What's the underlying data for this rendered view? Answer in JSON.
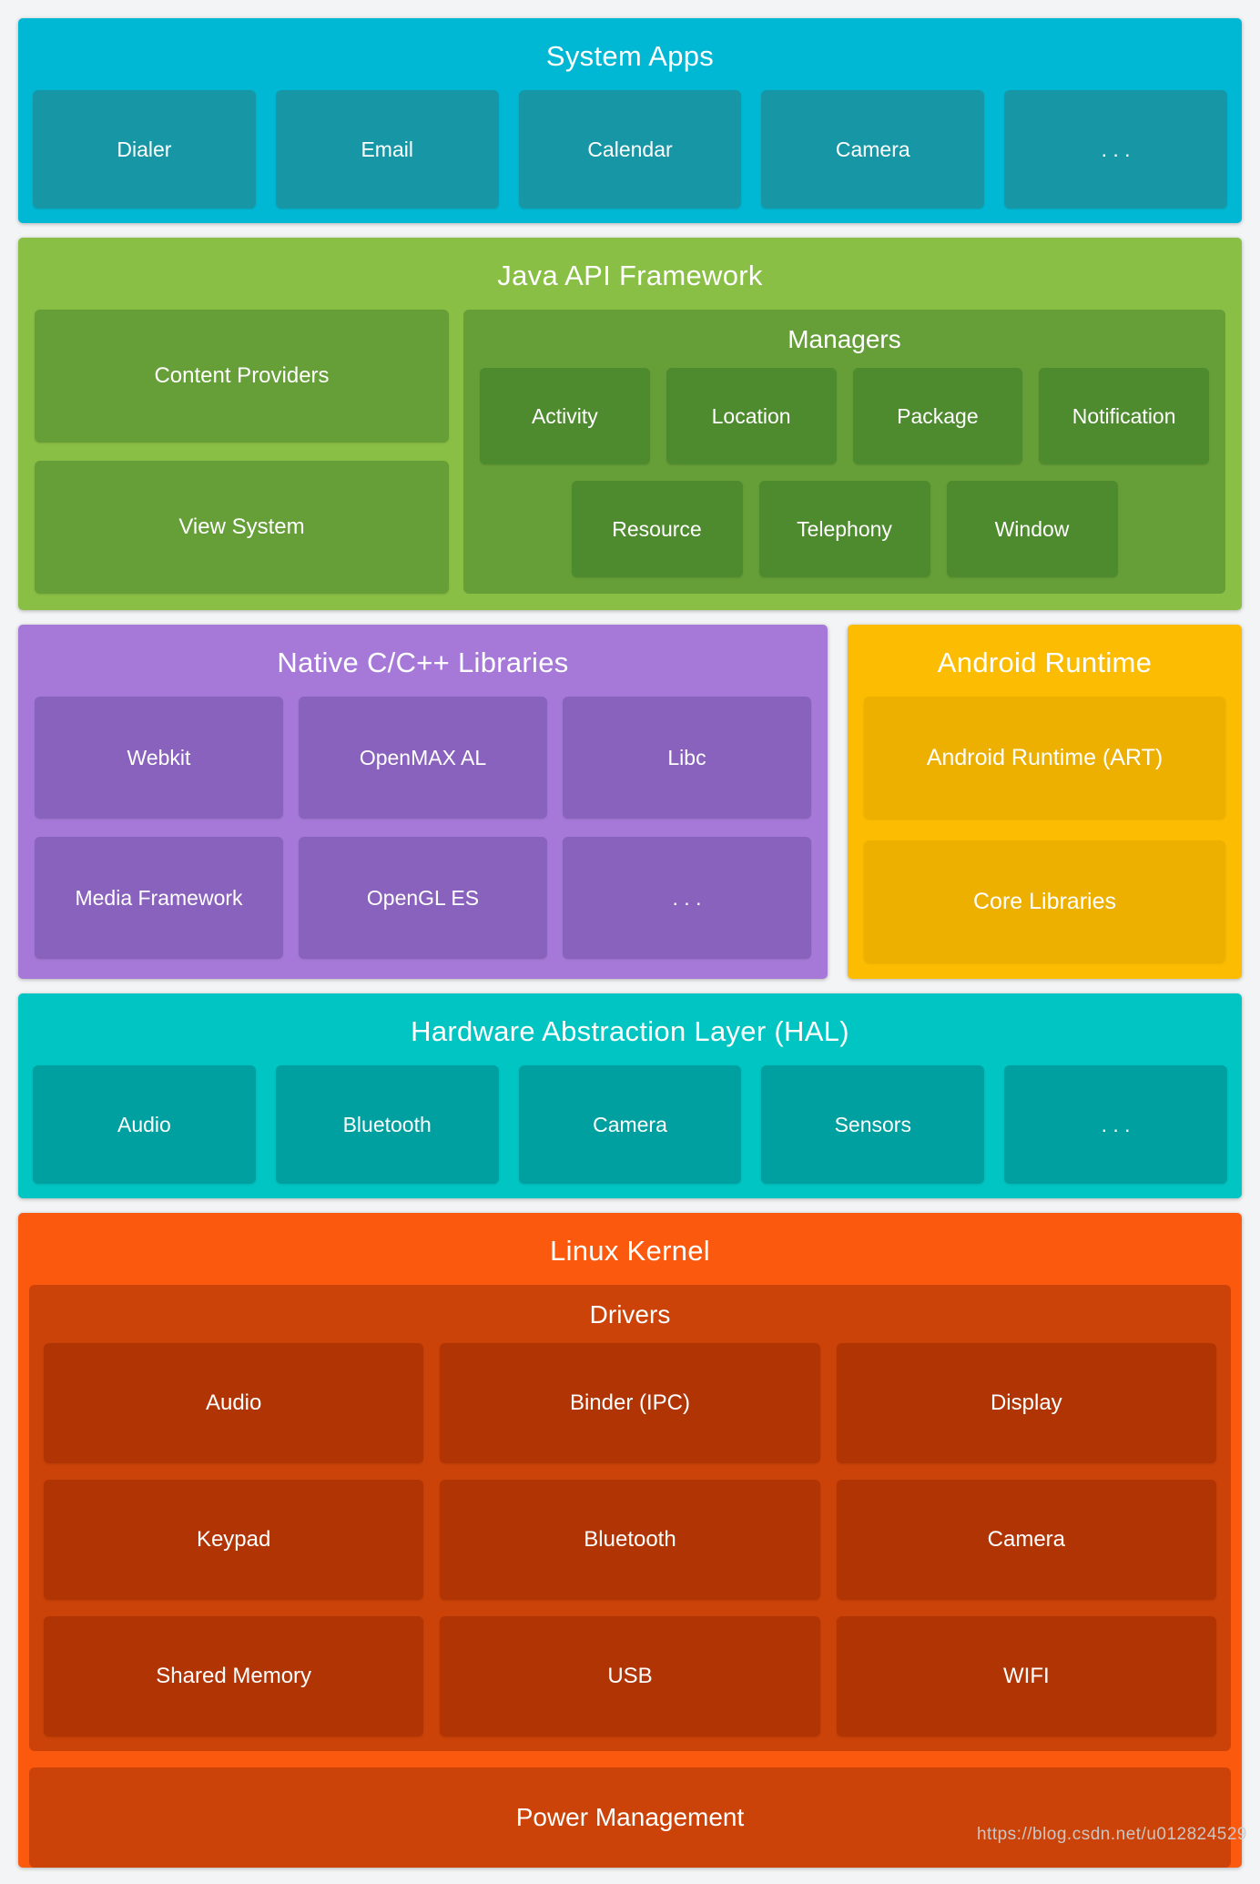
{
  "page": {
    "background": "#f3f4f5",
    "watermark": "https://blog.csdn.net/u012824529"
  },
  "system_apps": {
    "title": "System Apps",
    "bg": "#00b8d4",
    "box_bg": "#1797a5",
    "boxes": [
      "Dialer",
      "Email",
      "Calendar",
      "Camera",
      ". . ."
    ]
  },
  "java_api": {
    "title": "Java API Framework",
    "bg": "#8abf45",
    "box_bg": "#669f38",
    "inner_bg": "#4e8a2e",
    "left_boxes": [
      "Content Providers",
      "View System"
    ],
    "managers": {
      "title": "Managers",
      "row1": [
        "Activity",
        "Location",
        "Package",
        "Notification"
      ],
      "row2": [
        "Resource",
        "Telephony",
        "Window"
      ]
    }
  },
  "native_libs": {
    "title": "Native C/C++ Libraries",
    "bg": "#a679d8",
    "box_bg": "#8962bd",
    "boxes": [
      "Webkit",
      "OpenMAX AL",
      "Libc",
      "Media Framework",
      "OpenGL ES",
      ". . ."
    ]
  },
  "android_runtime": {
    "title": "Android Runtime",
    "bg": "#fcbc02",
    "box_bg": "#edb000",
    "boxes": [
      "Android Runtime (ART)",
      "Core Libraries"
    ]
  },
  "hal": {
    "title": "Hardware Abstraction Layer (HAL)",
    "bg": "#00c5c3",
    "box_bg": "#009fa0",
    "boxes": [
      "Audio",
      "Bluetooth",
      "Camera",
      "Sensors",
      ". . ."
    ]
  },
  "linux_kernel": {
    "title": "Linux Kernel",
    "bg": "#fb590e",
    "box_bg": "#cb4308",
    "inner_bg": "#b13404",
    "drivers": {
      "title": "Drivers",
      "boxes": [
        "Audio",
        "Binder (IPC)",
        "Display",
        "Keypad",
        "Bluetooth",
        "Camera",
        "Shared Memory",
        "USB",
        "WIFI"
      ]
    },
    "power": "Power Management"
  }
}
